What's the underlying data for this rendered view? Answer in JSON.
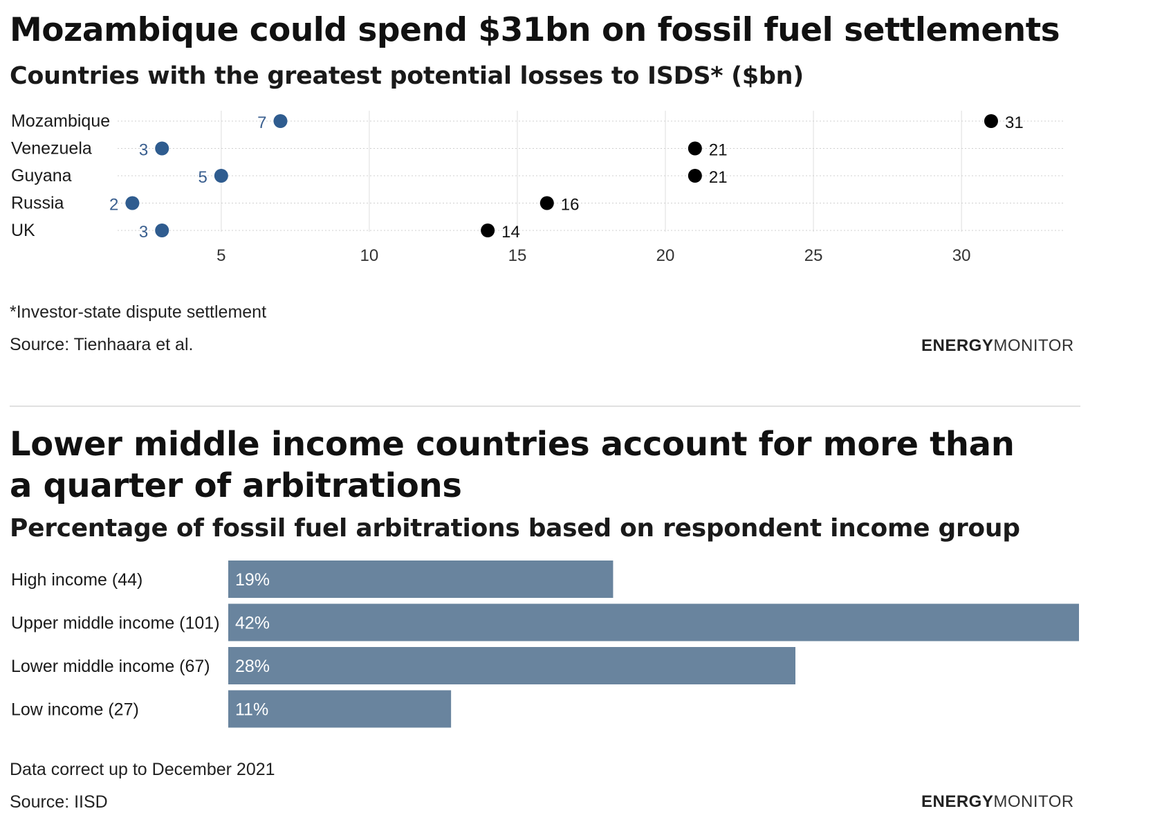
{
  "chart1": {
    "title": "Mozambique could spend $31bn on fossil fuel settlements",
    "subtitle": "Countries with the greatest potential losses to ISDS* ($bn)",
    "footnote": "*Investor-state dispute settlement",
    "source": "Source: Tienhaara et al.",
    "brand_bold": "ENERGY",
    "brand_light": "MONITOR"
  },
  "chart2": {
    "title": "Lower middle income countries account for more than a quarter of arbitrations",
    "subtitle": "Percentage of fossil fuel arbitrations based on respondent income group",
    "note": "Data correct up to December 2021",
    "source": "Source: IISD",
    "brand_bold": "ENERGY",
    "brand_light": "MONITOR"
  },
  "colors": {
    "dot_start": "#2f5c8f",
    "dot_end": "#000000",
    "line_start": "#8fa9c7",
    "line_end": "#6f6f6f",
    "bar": "#69849e"
  },
  "chart_data": [
    {
      "type": "dumbbell",
      "title": "Mozambique could spend $31bn on fossil fuel settlements",
      "subtitle": "Countries with the greatest potential losses to ISDS* ($bn)",
      "categories": [
        "Mozambique",
        "Venezuela",
        "Guyana",
        "Russia",
        "UK"
      ],
      "series": [
        {
          "name": "low",
          "values": [
            7,
            3,
            5,
            2,
            3
          ]
        },
        {
          "name": "high",
          "values": [
            31,
            21,
            21,
            16,
            14
          ]
        }
      ],
      "xticks": [
        5,
        10,
        15,
        20,
        25,
        30
      ],
      "xlim": [
        1.5,
        33.5
      ],
      "grid": true
    },
    {
      "type": "bar",
      "title": "Lower middle income countries account for more than a quarter of arbitrations",
      "subtitle": "Percentage of fossil fuel arbitrations based on respondent income group",
      "categories": [
        "High income (44)",
        "Upper middle income (101)",
        "Lower middle income (67)",
        "Low income (27)"
      ],
      "values": [
        19,
        42,
        28,
        11
      ],
      "value_labels": [
        "19%",
        "42%",
        "28%",
        "11%"
      ],
      "xlim": [
        0,
        42
      ],
      "grid": false
    }
  ]
}
